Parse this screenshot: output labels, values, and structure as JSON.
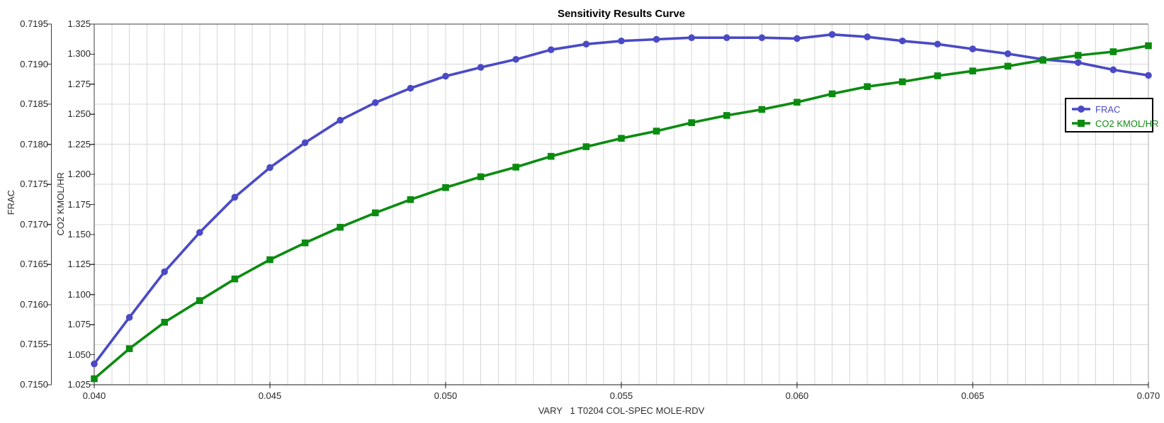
{
  "chart": {
    "title": "Sensitivity Results Curve",
    "frac_axis": {
      "label": "FRAC",
      "ticks": [
        "0.7195",
        "0.7190",
        "0.7185",
        "0.7180",
        "0.7175",
        "0.7170",
        "0.7165",
        "0.7160",
        "0.7155",
        "0.7150"
      ]
    },
    "co2_axis": {
      "label": "CO2 KMOL/HR",
      "ticks": [
        "1.325",
        "1.300",
        "1.275",
        "1.250",
        "1.225",
        "1.200",
        "1.175",
        "1.150",
        "1.125",
        "1.100",
        "1.075",
        "1.050",
        "1.025"
      ]
    },
    "x_axis": {
      "label": "VARY   1 T0204 COL-SPEC MOLE-RDV",
      "ticks": [
        "0.040",
        "0.045",
        "0.050",
        "0.055",
        "0.060",
        "0.065",
        "0.070"
      ]
    }
  },
  "legend": {
    "items": [
      {
        "label": "FRAC",
        "color": "#4A4AC6",
        "marker": "circle"
      },
      {
        "label": "CO2 KMOL/HR",
        "color": "#0B8C10",
        "marker": "square"
      }
    ]
  },
  "colors": {
    "frac_series": "#4A4AC6",
    "co2_series": "#0B8C10",
    "grid": "#D7D7D7",
    "axis_dark": "#3C3C3C",
    "plot_right_border": "#ABABAB",
    "tick_text": "#262626"
  },
  "chart_data": {
    "type": "line",
    "title": "Sensitivity Results Curve",
    "xlabel": "VARY   1 T0204 COL-SPEC MOLE-RDV",
    "xlim": [
      0.04,
      0.07
    ],
    "x_major_tick_interval": 0.005,
    "x_minor_grid_interval": 0.0005,
    "grid": "on",
    "legend_position": "right-inside",
    "x": [
      0.04,
      0.041,
      0.042,
      0.043,
      0.044,
      0.045,
      0.046,
      0.047,
      0.048,
      0.049,
      0.05,
      0.051,
      0.052,
      0.053,
      0.054,
      0.055,
      0.056,
      0.057,
      0.058,
      0.059,
      0.06,
      0.061,
      0.062,
      0.063,
      0.064,
      0.065,
      0.066,
      0.067,
      0.068,
      0.069,
      0.07
    ],
    "series": [
      {
        "name": "FRAC",
        "axis_label": "FRAC",
        "color": "#4A4AC6",
        "marker": "circle",
        "ylim": [
          0.715,
          0.7195
        ],
        "values": [
          0.71526,
          0.71584,
          0.71641,
          0.7169,
          0.71734,
          0.71771,
          0.71802,
          0.7183,
          0.71852,
          0.7187,
          0.71885,
          0.71896,
          0.71906,
          0.71918,
          0.71925,
          0.71929,
          0.71931,
          0.71933,
          0.71933,
          0.71933,
          0.71932,
          0.71937,
          0.71934,
          0.71929,
          0.71925,
          0.71919,
          0.71913,
          0.71906,
          0.71902,
          0.71893,
          0.71886
        ]
      },
      {
        "name": "CO2 KMOL/HR",
        "axis_label": "CO2 KMOL/HR",
        "color": "#0B8C10",
        "marker": "square",
        "ylim": [
          1.025,
          1.325
        ],
        "values": [
          1.03,
          1.055,
          1.077,
          1.095,
          1.113,
          1.129,
          1.143,
          1.156,
          1.168,
          1.179,
          1.189,
          1.198,
          1.206,
          1.215,
          1.223,
          1.23,
          1.236,
          1.243,
          1.249,
          1.254,
          1.26,
          1.267,
          1.273,
          1.277,
          1.282,
          1.286,
          1.29,
          1.295,
          1.299,
          1.302,
          1.307
        ]
      }
    ]
  }
}
